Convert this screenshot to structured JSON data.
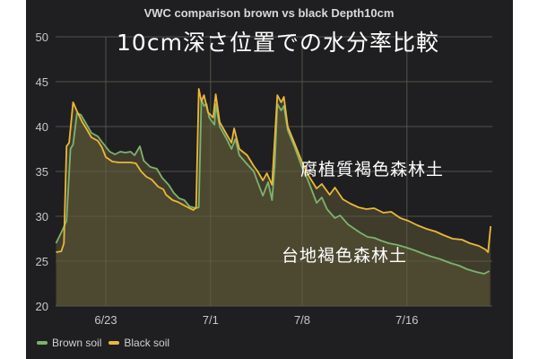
{
  "title": "VWC comparison brown vs black Depth10cm",
  "overlay_title": "10cm深さ位置での水分率比較",
  "annotations": {
    "black_soil_label": "腐植質褐色森林土",
    "brown_soil_label": "台地褐色森林土"
  },
  "legend": [
    {
      "name": "Brown soil",
      "color": "#7eb26d"
    },
    {
      "name": "Black soil",
      "color": "#eab839"
    }
  ],
  "colors": {
    "panel_bg": "#1f1f21",
    "grid": "#3a3a3c",
    "fill": "#3d3b2c",
    "brown": "#7eb26d",
    "black": "#eab839"
  },
  "chart_data": {
    "type": "line",
    "title": "VWC comparison brown vs black Depth10cm",
    "xlabel": "",
    "ylabel": "",
    "ylim": [
      20,
      50
    ],
    "yticks": [
      20,
      25,
      30,
      35,
      40,
      45,
      50
    ],
    "xticks": [
      {
        "label": "6/23",
        "day": 0
      },
      {
        "label": "7/1",
        "day": 8
      },
      {
        "label": "7/8",
        "day": 15
      },
      {
        "label": "7/16",
        "day": 23
      }
    ],
    "x_unit": "days since 6/23",
    "xlim": [
      -3.8,
      29.4
    ],
    "grid": true,
    "legend_position": "bottom-left",
    "fill_area": true,
    "series": [
      {
        "name": "Brown soil",
        "points": [
          [
            -3.8,
            27.0
          ],
          [
            -3.3,
            28.5
          ],
          [
            -3.0,
            29.5
          ],
          [
            -2.7,
            37.5
          ],
          [
            -2.5,
            38.0
          ],
          [
            -2.2,
            41.5
          ],
          [
            -1.9,
            41.3
          ],
          [
            -1.5,
            40.3
          ],
          [
            -1.1,
            39.3
          ],
          [
            -0.6,
            38.9
          ],
          [
            -0.3,
            38.3
          ],
          [
            0.3,
            37.2
          ],
          [
            0.7,
            36.9
          ],
          [
            1.1,
            37.2
          ],
          [
            1.5,
            37.1
          ],
          [
            1.9,
            37.2
          ],
          [
            2.2,
            36.8
          ],
          [
            2.6,
            37.8
          ],
          [
            2.9,
            36.2
          ],
          [
            3.4,
            35.5
          ],
          [
            3.9,
            35.3
          ],
          [
            4.3,
            34.3
          ],
          [
            4.8,
            33.5
          ],
          [
            5.2,
            32.6
          ],
          [
            5.6,
            32.0
          ],
          [
            6.0,
            31.8
          ],
          [
            6.4,
            31.1
          ],
          [
            6.9,
            30.9
          ],
          [
            7.1,
            31.0
          ],
          [
            7.3,
            43.0
          ],
          [
            7.5,
            42.3
          ],
          [
            7.7,
            42.5
          ],
          [
            7.9,
            41.0
          ],
          [
            8.3,
            40.2
          ],
          [
            8.4,
            42.5
          ],
          [
            8.7,
            40.0
          ],
          [
            9.2,
            38.7
          ],
          [
            9.6,
            37.5
          ],
          [
            9.9,
            38.6
          ],
          [
            10.2,
            36.8
          ],
          [
            10.8,
            35.8
          ],
          [
            11.3,
            35.0
          ],
          [
            11.6,
            33.8
          ],
          [
            12.0,
            32.3
          ],
          [
            12.4,
            33.8
          ],
          [
            12.7,
            31.8
          ],
          [
            12.9,
            35.5
          ],
          [
            13.1,
            42.5
          ],
          [
            13.4,
            41.8
          ],
          [
            13.6,
            42.3
          ],
          [
            13.9,
            39.6
          ],
          [
            14.4,
            37.8
          ],
          [
            15.1,
            35.0
          ],
          [
            15.4,
            34.2
          ],
          [
            16.1,
            31.5
          ],
          [
            16.5,
            32.1
          ],
          [
            16.9,
            30.8
          ],
          [
            17.5,
            29.8
          ],
          [
            17.9,
            30.1
          ],
          [
            18.5,
            29.1
          ],
          [
            19.0,
            28.6
          ],
          [
            19.4,
            28.2
          ],
          [
            20.0,
            27.7
          ],
          [
            20.5,
            27.6
          ],
          [
            21.0,
            27.3
          ],
          [
            21.6,
            27.0
          ],
          [
            22.3,
            26.8
          ],
          [
            23.0,
            26.5
          ],
          [
            23.6,
            26.2
          ],
          [
            24.3,
            25.8
          ],
          [
            24.9,
            25.5
          ],
          [
            25.6,
            25.2
          ],
          [
            26.3,
            24.8
          ],
          [
            27.0,
            24.5
          ],
          [
            27.6,
            24.1
          ],
          [
            28.3,
            23.8
          ],
          [
            28.9,
            23.6
          ],
          [
            29.3,
            23.9
          ]
        ]
      },
      {
        "name": "Black soil",
        "points": [
          [
            -3.8,
            26.0
          ],
          [
            -3.4,
            26.1
          ],
          [
            -3.2,
            27.0
          ],
          [
            -3.0,
            37.8
          ],
          [
            -2.8,
            38.2
          ],
          [
            -2.5,
            42.7
          ],
          [
            -2.2,
            41.7
          ],
          [
            -1.8,
            40.5
          ],
          [
            -1.5,
            39.8
          ],
          [
            -1.1,
            38.8
          ],
          [
            -0.6,
            38.4
          ],
          [
            -0.3,
            37.7
          ],
          [
            0.0,
            36.6
          ],
          [
            0.5,
            36.1
          ],
          [
            1.0,
            36.0
          ],
          [
            1.5,
            36.0
          ],
          [
            1.9,
            36.0
          ],
          [
            2.3,
            35.9
          ],
          [
            2.7,
            35.0
          ],
          [
            3.1,
            34.4
          ],
          [
            3.5,
            34.1
          ],
          [
            4.0,
            33.3
          ],
          [
            4.4,
            33.0
          ],
          [
            4.6,
            32.4
          ],
          [
            5.1,
            31.8
          ],
          [
            5.5,
            31.6
          ],
          [
            6.0,
            31.2
          ],
          [
            6.4,
            30.9
          ],
          [
            6.7,
            30.7
          ],
          [
            6.9,
            31.0
          ],
          [
            7.1,
            44.2
          ],
          [
            7.3,
            42.8
          ],
          [
            7.5,
            43.5
          ],
          [
            7.8,
            41.6
          ],
          [
            8.2,
            41.0
          ],
          [
            8.4,
            43.6
          ],
          [
            8.7,
            40.5
          ],
          [
            9.2,
            39.2
          ],
          [
            9.6,
            38.2
          ],
          [
            9.8,
            39.8
          ],
          [
            10.2,
            37.5
          ],
          [
            10.8,
            36.8
          ],
          [
            11.3,
            35.6
          ],
          [
            11.6,
            35.0
          ],
          [
            12.0,
            34.0
          ],
          [
            12.3,
            34.8
          ],
          [
            12.7,
            33.5
          ],
          [
            13.1,
            43.5
          ],
          [
            13.4,
            42.7
          ],
          [
            13.6,
            43.3
          ],
          [
            13.9,
            40.0
          ],
          [
            14.4,
            38.2
          ],
          [
            15.0,
            36.0
          ],
          [
            15.5,
            34.5
          ],
          [
            16.1,
            33.1
          ],
          [
            16.5,
            33.6
          ],
          [
            17.1,
            32.4
          ],
          [
            17.5,
            33.2
          ],
          [
            18.1,
            31.9
          ],
          [
            18.7,
            31.4
          ],
          [
            19.3,
            31.0
          ],
          [
            19.9,
            30.8
          ],
          [
            20.5,
            30.9
          ],
          [
            21.2,
            30.4
          ],
          [
            21.8,
            30.5
          ],
          [
            22.5,
            29.8
          ],
          [
            23.1,
            29.5
          ],
          [
            23.8,
            29.0
          ],
          [
            24.5,
            28.6
          ],
          [
            25.2,
            28.3
          ],
          [
            25.8,
            27.9
          ],
          [
            26.5,
            27.5
          ],
          [
            27.2,
            27.4
          ],
          [
            27.8,
            27.0
          ],
          [
            28.5,
            26.7
          ],
          [
            29.0,
            26.3
          ],
          [
            29.2,
            26.0
          ],
          [
            29.4,
            28.9
          ]
        ]
      }
    ]
  }
}
